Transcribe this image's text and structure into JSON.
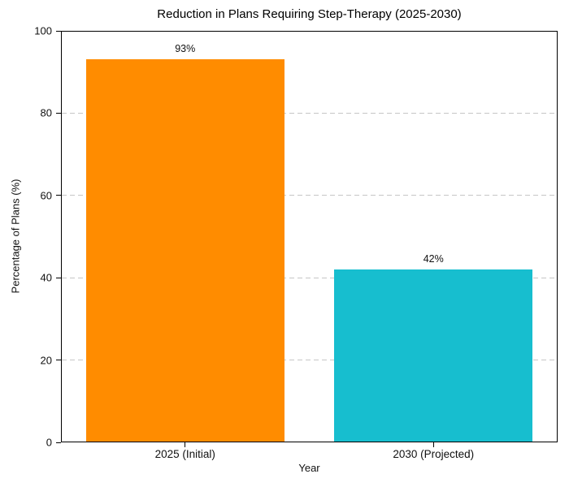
{
  "chart_data": {
    "type": "bar",
    "title": "Reduction in Plans Requiring Step-Therapy (2025-2030)",
    "xlabel": "Year",
    "ylabel": "Percentage of Plans (%)",
    "categories": [
      "2025 (Initial)",
      "2030 (Projected)"
    ],
    "values": [
      93,
      42
    ],
    "value_labels": [
      "93%",
      "42%"
    ],
    "bar_colors": [
      "#ff8c00",
      "#17becf"
    ],
    "ylim": [
      0,
      100
    ],
    "yticks": [
      0,
      20,
      40,
      60,
      80,
      100
    ],
    "grid": {
      "axis": "y",
      "style": "dashed",
      "color": "#c6c6c6"
    },
    "legend_position": "none",
    "bar_width_fraction": 0.8,
    "background_color": "#ffffff",
    "spine_color": "#000000"
  }
}
